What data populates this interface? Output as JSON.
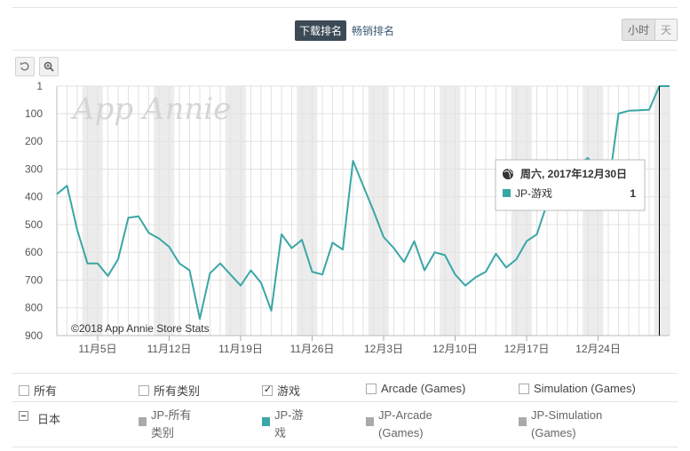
{
  "toolbar": {
    "tab_active": "下载排名",
    "tab_inactive": "畅销排名",
    "period_hour": "小时",
    "period_day": "天"
  },
  "chart_data": {
    "type": "line",
    "watermark": "App Annie",
    "copyright": "©2018 App Annie Store Stats",
    "y_reversed": true,
    "ylim": [
      1,
      900
    ],
    "y_ticks": [
      1,
      100,
      200,
      300,
      400,
      500,
      600,
      700,
      800,
      900
    ],
    "y_tick_labels": [
      "1",
      "100",
      "200",
      "300",
      "400",
      "500",
      "600",
      "700",
      "800",
      "900"
    ],
    "x_tick_labels": [
      "11月5日",
      "11月12日",
      "11月19日",
      "11月26日",
      "12月3日",
      "12月10日",
      "12月17日",
      "12月24日"
    ],
    "x": [
      "11-01",
      "11-02",
      "11-03",
      "11-04",
      "11-05",
      "11-06",
      "11-07",
      "11-08",
      "11-09",
      "11-10",
      "11-11",
      "11-12",
      "11-13",
      "11-14",
      "11-15",
      "11-16",
      "11-17",
      "11-18",
      "11-19",
      "11-20",
      "11-21",
      "11-22",
      "11-23",
      "11-24",
      "11-25",
      "11-26",
      "11-27",
      "11-28",
      "11-29",
      "11-30",
      "12-01",
      "12-02",
      "12-03",
      "12-04",
      "12-05",
      "12-06",
      "12-07",
      "12-08",
      "12-09",
      "12-10",
      "12-11",
      "12-12",
      "12-13",
      "12-14",
      "12-15",
      "12-16",
      "12-17",
      "12-18",
      "12-19",
      "12-20",
      "12-21",
      "12-22",
      "12-23",
      "12-24",
      "12-25",
      "12-26",
      "12-27",
      "12-28",
      "12-29",
      "12-30",
      "12-31"
    ],
    "series": [
      {
        "name": "JP-游戏",
        "color": "#3aa6a6",
        "values": [
          390,
          360,
          520,
          640,
          640,
          685,
          625,
          475,
          470,
          530,
          550,
          580,
          640,
          665,
          840,
          675,
          640,
          680,
          720,
          665,
          710,
          810,
          535,
          585,
          555,
          670,
          680,
          565,
          590,
          270,
          360,
          450,
          545,
          585,
          635,
          560,
          665,
          600,
          610,
          680,
          720,
          690,
          670,
          605,
          655,
          625,
          560,
          535,
          425,
          380,
          320,
          285,
          260,
          300,
          370,
          100,
          90,
          88,
          86,
          1,
          1
        ]
      }
    ],
    "tooltip": {
      "date": "周六, 2017年12月30日",
      "series": "JP-游戏",
      "value": "1"
    }
  },
  "legend": {
    "checkboxes": [
      {
        "label": "所有",
        "checked": false
      },
      {
        "label": "所有类别",
        "checked": false
      },
      {
        "label": "游戏",
        "checked": true
      },
      {
        "label": "Arcade (Games)",
        "checked": false
      },
      {
        "label": "Simulation (Games)",
        "checked": false
      }
    ],
    "region": "日本",
    "series": [
      {
        "line1": "JP-所有",
        "line2": "类别",
        "color": "#aaaaaa"
      },
      {
        "line1": "JP-游",
        "line2": "戏",
        "color": "#3aa6a6"
      },
      {
        "line1": "JP-Arcade",
        "line2": "(Games)",
        "color": "#aaaaaa"
      },
      {
        "line1": "JP-Simulation",
        "line2": "(Games)",
        "color": "#aaaaaa"
      }
    ]
  }
}
